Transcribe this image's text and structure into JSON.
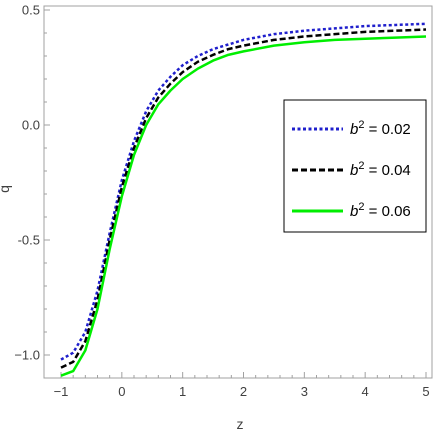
{
  "chart_data": {
    "type": "line",
    "title": "",
    "xlabel": "z",
    "ylabel": "q",
    "xlim": [
      -1,
      5
    ],
    "ylim": [
      -1.17,
      0.52
    ],
    "x_ticks": [
      -1,
      0,
      1,
      2,
      3,
      4,
      5
    ],
    "y_ticks": [
      0.5,
      0.0,
      -0.5,
      -1.0
    ],
    "x_tick_labels": [
      "−1",
      "0",
      "1",
      "2",
      "3",
      "4",
      "5"
    ],
    "y_tick_labels": [
      "0.5",
      "0.0",
      "-0.5",
      "−1.0"
    ],
    "grid": false,
    "legend_position": "right",
    "x": [
      -1.0,
      -0.8,
      -0.6,
      -0.4,
      -0.2,
      0.0,
      0.2,
      0.4,
      0.6,
      0.8,
      1.0,
      1.25,
      1.5,
      1.75,
      2.0,
      2.5,
      3.0,
      3.5,
      4.0,
      4.5,
      5.0
    ],
    "series": [
      {
        "legend_base": "b",
        "legend_exp": "2",
        "legend_value": " = 0.02",
        "color": "#1f1fcc",
        "dash": "3,2.5",
        "values": [
          -1.02,
          -0.99,
          -0.9,
          -0.72,
          -0.47,
          -0.24,
          -0.07,
          0.06,
          0.15,
          0.21,
          0.26,
          0.3,
          0.33,
          0.35,
          0.37,
          0.395,
          0.41,
          0.42,
          0.43,
          0.435,
          0.44
        ]
      },
      {
        "legend_base": "b",
        "legend_exp": "2",
        "legend_value": " = 0.04",
        "color": "#000000",
        "dash": "6,3",
        "values": [
          -1.055,
          -1.03,
          -0.94,
          -0.76,
          -0.5,
          -0.27,
          -0.1,
          0.03,
          0.12,
          0.18,
          0.23,
          0.275,
          0.305,
          0.33,
          0.345,
          0.37,
          0.385,
          0.395,
          0.405,
          0.41,
          0.415
        ]
      },
      {
        "legend_base": "b",
        "legend_exp": "2",
        "legend_value": " = 0.06",
        "color": "#00ee00",
        "dash": "",
        "values": [
          -1.09,
          -1.07,
          -0.98,
          -0.8,
          -0.54,
          -0.31,
          -0.13,
          0.0,
          0.09,
          0.15,
          0.2,
          0.245,
          0.28,
          0.305,
          0.32,
          0.345,
          0.36,
          0.37,
          0.375,
          0.38,
          0.385
        ]
      }
    ]
  }
}
